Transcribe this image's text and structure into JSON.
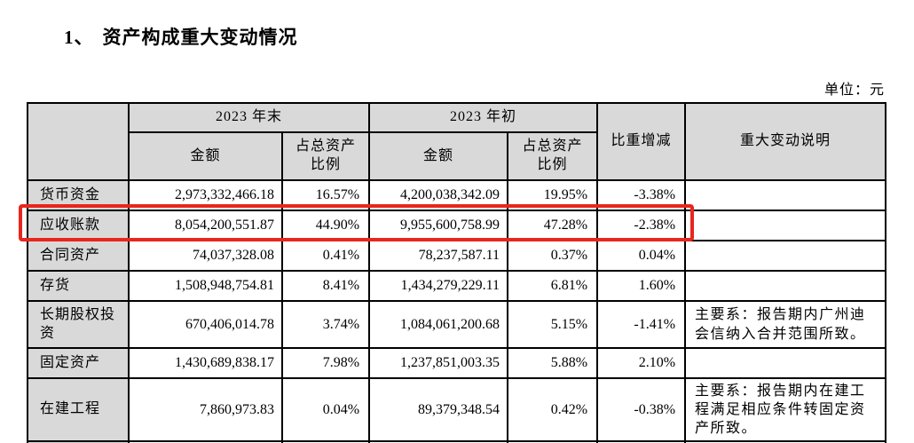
{
  "page": {
    "title_number": "1、",
    "title": "资产构成重大变动情况",
    "unit_label": "单位：元"
  },
  "table": {
    "col_groups": [
      {
        "label": "2023 年末"
      },
      {
        "label": "2023 年初"
      }
    ],
    "headers": {
      "amount": "金额",
      "ratio_line1": "占总资产",
      "ratio_line2": "比例",
      "change": "比重增减",
      "explanation": "重大变动说明"
    },
    "rows": [
      {
        "name": "货币资金",
        "end_amount": "2,973,332,466.18",
        "end_ratio": "16.57%",
        "begin_amount": "4,200,038,342.09",
        "begin_ratio": "19.95%",
        "change": "-3.38%",
        "note": "",
        "highlighted": false
      },
      {
        "name": "应收账款",
        "end_amount": "8,054,200,551.87",
        "end_ratio": "44.90%",
        "begin_amount": "9,955,600,758.99",
        "begin_ratio": "47.28%",
        "change": "-2.38%",
        "note": "",
        "highlighted": true
      },
      {
        "name": "合同资产",
        "end_amount": "74,037,328.08",
        "end_ratio": "0.41%",
        "begin_amount": "78,237,587.11",
        "begin_ratio": "0.37%",
        "change": "0.04%",
        "note": "",
        "highlighted": false
      },
      {
        "name": "存货",
        "end_amount": "1,508,948,754.81",
        "end_ratio": "8.41%",
        "begin_amount": "1,434,279,229.11",
        "begin_ratio": "6.81%",
        "change": "1.60%",
        "note": "",
        "highlighted": false
      },
      {
        "name": "长期股权投资",
        "end_amount": "670,406,014.78",
        "end_ratio": "3.74%",
        "begin_amount": "1,084,061,200.68",
        "begin_ratio": "5.15%",
        "change": "-1.41%",
        "note": "主要系：报告期内广州迪会信纳入合并范围所致。",
        "highlighted": false
      },
      {
        "name": "固定资产",
        "end_amount": "1,430,689,838.17",
        "end_ratio": "7.98%",
        "begin_amount": "1,237,851,003.35",
        "begin_ratio": "5.88%",
        "change": "2.10%",
        "note": "",
        "highlighted": false
      },
      {
        "name": "在建工程",
        "end_amount": "7,860,973.83",
        "end_ratio": "0.04%",
        "begin_amount": "89,379,348.54",
        "begin_ratio": "0.42%",
        "change": "-0.38%",
        "note": "主要系：报告期内在建工程满足相应条件转固定资产所致。",
        "highlighted": false
      }
    ],
    "colors": {
      "header_bg": "#d9d9d9",
      "border": "#000000",
      "highlight_border": "#e8261d"
    }
  }
}
